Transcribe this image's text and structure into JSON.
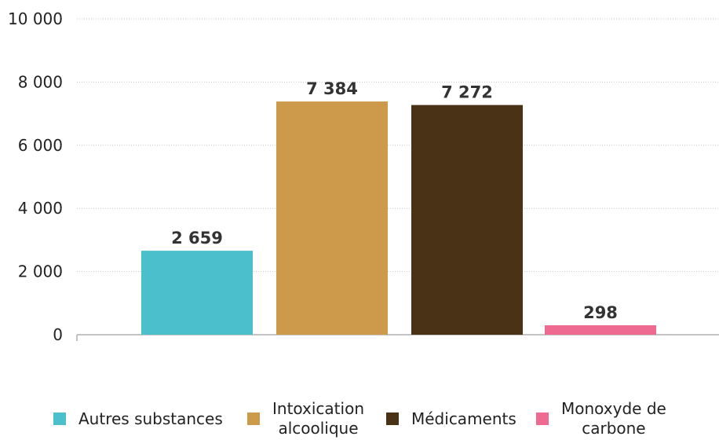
{
  "chart_data": {
    "type": "bar",
    "title": "",
    "xlabel": "",
    "ylabel": "",
    "ylim": [
      0,
      10000
    ],
    "yticks": [
      {
        "value": 0,
        "label": "0"
      },
      {
        "value": 2000,
        "label": "2 000"
      },
      {
        "value": 4000,
        "label": "4 000"
      },
      {
        "value": 6000,
        "label": "6 000"
      },
      {
        "value": 8000,
        "label": "8 000"
      },
      {
        "value": 10000,
        "label": "10 000"
      }
    ],
    "grid": true,
    "legend_position": "bottom",
    "categories": [
      "Autres substances",
      "Intoxication\nalcoolique",
      "Médicaments",
      "Monoxyde de\ncarbone"
    ],
    "values": [
      2659,
      7384,
      7272,
      298
    ],
    "value_labels": [
      "2 659",
      "7 384",
      "7 272",
      "298"
    ],
    "colors": [
      "#4bbfcc",
      "#cc9a4a",
      "#4a3216",
      "#ee6a91"
    ]
  }
}
